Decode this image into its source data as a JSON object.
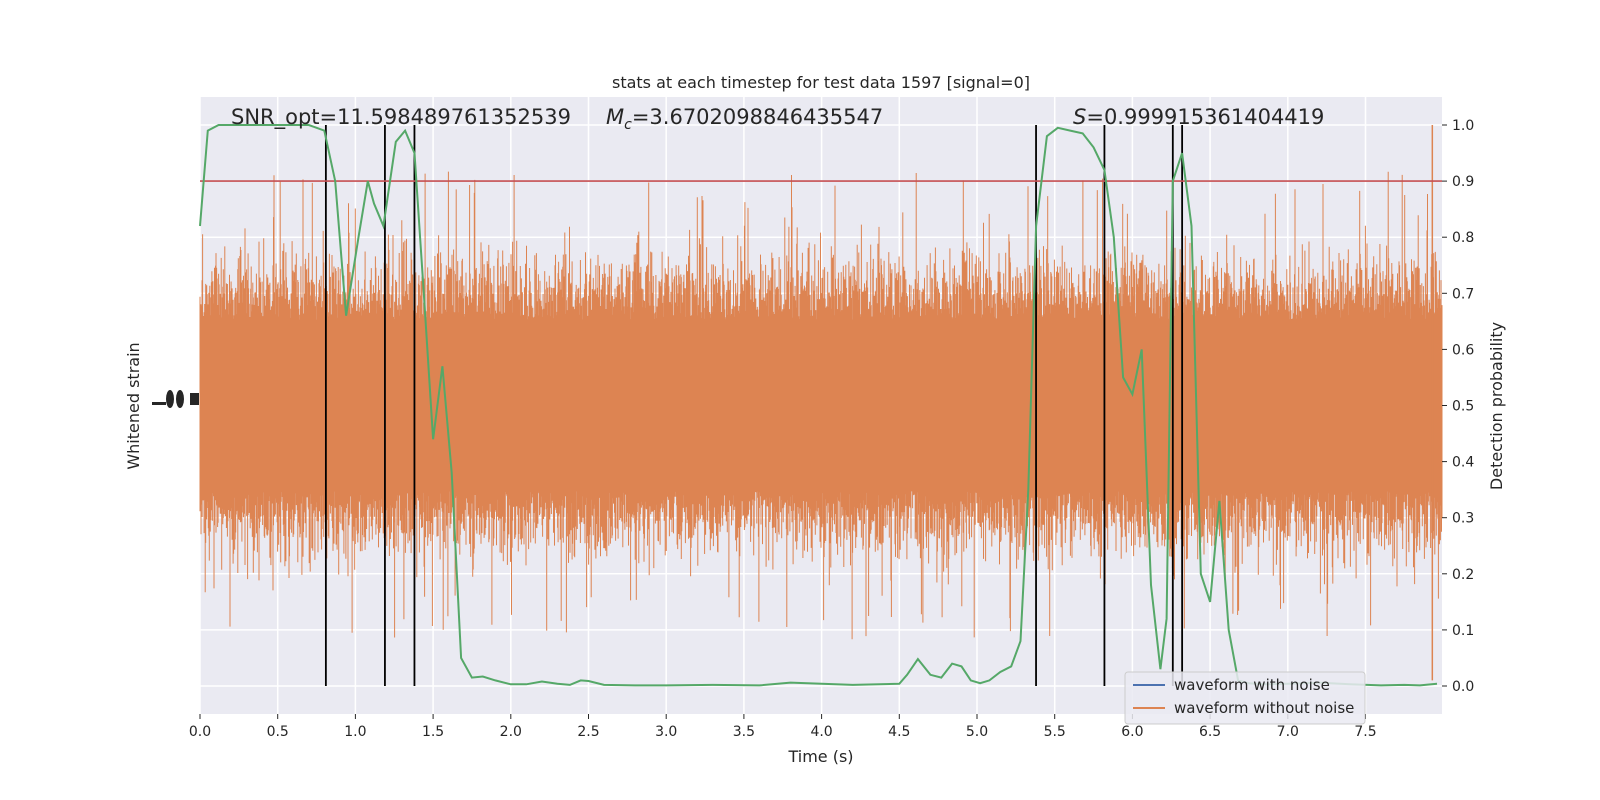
{
  "chart_data": {
    "type": "line",
    "title": "stats at each timestep for test data 1597 [signal=0]",
    "xlabel": "Time (s)",
    "ylabel_left": "Whitened strain",
    "ylabel_right": "Detection probability",
    "xlim": [
      0.0,
      8.0
    ],
    "ylim_right": [
      -0.05,
      1.05
    ],
    "x_ticks": [
      "0.0",
      "0.5",
      "1.0",
      "1.5",
      "2.0",
      "2.5",
      "3.0",
      "3.5",
      "4.0",
      "4.5",
      "5.0",
      "5.5",
      "6.0",
      "6.5",
      "7.0",
      "7.5"
    ],
    "y_ticks_right": [
      "0.0",
      "0.1",
      "0.2",
      "0.3",
      "0.4",
      "0.5",
      "0.6",
      "0.7",
      "0.8",
      "0.9",
      "1.0"
    ],
    "grid": true,
    "legend_position": "lower right",
    "annotations": {
      "snr": "SNR_opt=11.598489761352539",
      "mc": "=3.6702098846435547",
      "s": "=0.999915361404419"
    },
    "threshold": 0.9,
    "detection_times": [
      0.81,
      1.19,
      1.38,
      5.38,
      5.82,
      6.26,
      6.32
    ],
    "series": [
      {
        "name": "waveform with noise",
        "color": "#4c72b0",
        "note_values": "hidden behind orange trace"
      },
      {
        "name": "waveform without noise",
        "color": "#dd8452",
        "envelope_center": 0.5,
        "envelope_core_half_width": 0.17,
        "envelope_spike_max": 0.5
      },
      {
        "name": "detection probability",
        "color": "#55a868",
        "x": [
          0.0,
          0.05,
          0.12,
          0.2,
          0.3,
          0.4,
          0.5,
          0.6,
          0.7,
          0.8,
          0.87,
          0.94,
          1.02,
          1.08,
          1.12,
          1.18,
          1.26,
          1.32,
          1.38,
          1.44,
          1.5,
          1.56,
          1.62,
          1.68,
          1.75,
          1.82,
          1.9,
          2.0,
          2.1,
          2.2,
          2.3,
          2.38,
          2.45,
          2.5,
          2.6,
          2.8,
          3.0,
          3.3,
          3.6,
          3.8,
          4.0,
          4.2,
          4.5,
          4.55,
          4.62,
          4.7,
          4.77,
          4.84,
          4.9,
          4.96,
          5.02,
          5.08,
          5.15,
          5.22,
          5.28,
          5.33,
          5.38,
          5.45,
          5.52,
          5.6,
          5.68,
          5.75,
          5.82,
          5.88,
          5.94,
          6.0,
          6.06,
          6.12,
          6.18,
          6.22,
          6.26,
          6.32,
          6.38,
          6.44,
          6.5,
          6.56,
          6.62,
          6.68,
          6.75,
          6.85,
          7.0,
          7.2,
          7.4,
          7.6,
          7.75,
          7.85,
          7.96
        ],
        "values": [
          0.82,
          0.99,
          1.0,
          1.0,
          1.0,
          1.0,
          1.0,
          1.0,
          1.0,
          0.99,
          0.9,
          0.66,
          0.8,
          0.9,
          0.86,
          0.82,
          0.97,
          0.99,
          0.95,
          0.7,
          0.44,
          0.57,
          0.38,
          0.05,
          0.015,
          0.017,
          0.01,
          0.003,
          0.003,
          0.008,
          0.004,
          0.002,
          0.01,
          0.009,
          0.002,
          0.001,
          0.001,
          0.002,
          0.001,
          0.006,
          0.004,
          0.002,
          0.004,
          0.02,
          0.048,
          0.02,
          0.015,
          0.04,
          0.035,
          0.01,
          0.005,
          0.01,
          0.025,
          0.035,
          0.08,
          0.35,
          0.82,
          0.98,
          0.995,
          0.99,
          0.985,
          0.96,
          0.92,
          0.8,
          0.55,
          0.52,
          0.6,
          0.18,
          0.03,
          0.12,
          0.9,
          0.95,
          0.82,
          0.2,
          0.15,
          0.33,
          0.1,
          0.01,
          0.005,
          0.003,
          0.004,
          0.006,
          0.003,
          0.001,
          0.002,
          0.001,
          0.004
        ]
      }
    ]
  }
}
